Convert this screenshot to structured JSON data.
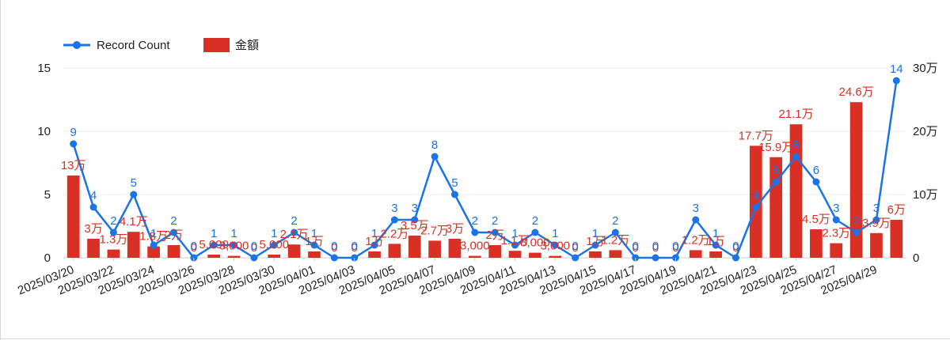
{
  "chart_data": {
    "type": "bar+line",
    "title": "",
    "xlabel": "",
    "colors": {
      "line": "#1a73e8",
      "bar": "#d93025"
    },
    "legend": {
      "position": "top-left",
      "entries": [
        {
          "name": "Record Count",
          "type": "line",
          "color": "#1a73e8"
        },
        {
          "name": "金額",
          "type": "bar",
          "color": "#d93025"
        }
      ]
    },
    "x": [
      "2025/03/20",
      "2025/03/21",
      "2025/03/22",
      "2025/03/23",
      "2025/03/24",
      "2025/03/25",
      "2025/03/26",
      "2025/03/27",
      "2025/03/28",
      "2025/03/29",
      "2025/03/30",
      "2025/03/31",
      "2025/04/01",
      "2025/04/02",
      "2025/04/03",
      "2025/04/04",
      "2025/04/05",
      "2025/04/06",
      "2025/04/07",
      "2025/04/08",
      "2025/04/09",
      "2025/04/10",
      "2025/04/11",
      "2025/04/12",
      "2025/04/13",
      "2025/04/14",
      "2025/04/15",
      "2025/04/16",
      "2025/04/17",
      "2025/04/18",
      "2025/04/19",
      "2025/04/20",
      "2025/04/21",
      "2025/04/22",
      "2025/04/23",
      "2025/04/24",
      "2025/04/25",
      "2025/04/26",
      "2025/04/27",
      "2025/04/28",
      "2025/04/29",
      "2025/04/30"
    ],
    "x_tick_labels": [
      "2025/03/20",
      "2025/03/22",
      "2025/03/24",
      "2025/03/26",
      "2025/03/28",
      "2025/03/30",
      "2025/04/01",
      "2025/04/03",
      "2025/04/05",
      "2025/04/07",
      "2025/04/09",
      "2025/04/11",
      "2025/04/13",
      "2025/04/15",
      "2025/04/17",
      "2025/04/19",
      "2025/04/21",
      "2025/04/23",
      "2025/04/25",
      "2025/04/27",
      "2025/04/29"
    ],
    "y_left": {
      "ticks": [
        0,
        5,
        10,
        15
      ],
      "tick_labels": [
        "0",
        "5",
        "10",
        "15"
      ],
      "range": [
        0,
        15
      ]
    },
    "y_right": {
      "ticks": [
        0,
        100000,
        200000,
        300000
      ],
      "tick_labels": [
        "0",
        "10万",
        "20万",
        "30万"
      ],
      "range": [
        0,
        300000
      ]
    },
    "series": [
      {
        "name": "Record Count",
        "type": "line",
        "axis": "left",
        "values": [
          9,
          4,
          2,
          5,
          1,
          2,
          0,
          1,
          1,
          0,
          1,
          2,
          1,
          0,
          0,
          1,
          3,
          3,
          8,
          5,
          2,
          2,
          1,
          2,
          1,
          0,
          1,
          2,
          0,
          0,
          0,
          3,
          1,
          0,
          4,
          6,
          8,
          6,
          3,
          2,
          3,
          14
        ],
        "labels": [
          "9",
          "4",
          "2",
          "5",
          "1",
          "2",
          "0",
          "1",
          "1",
          "0",
          "1",
          "2",
          "1",
          "0",
          "0",
          "1",
          "3",
          "3",
          "8",
          "5",
          "2",
          "2",
          "1",
          "2",
          "1",
          "0",
          "1",
          "2",
          "0",
          "0",
          "0",
          "3",
          "1",
          "0",
          "4",
          "6",
          "8",
          "6",
          "3",
          "2",
          "3",
          "14"
        ]
      },
      {
        "name": "金額",
        "type": "bar",
        "axis": "right",
        "values": [
          130000,
          30000,
          13000,
          41000,
          18000,
          20000,
          0,
          5000,
          3000,
          0,
          5000,
          21000,
          10000,
          0,
          0,
          10000,
          22000,
          35000,
          27000,
          30000,
          3000,
          20000,
          11000,
          8000,
          3000,
          0,
          10000,
          12000,
          0,
          0,
          0,
          12000,
          10000,
          0,
          177000,
          159000,
          211000,
          45000,
          23000,
          246000,
          39000,
          60000
        ],
        "labels": [
          "13万",
          "3万",
          "1.3万",
          "4.1万",
          "1.8万",
          "2万",
          "0",
          "5,000",
          "3,000",
          "0",
          "5,000",
          "2.1万",
          "1万",
          "0",
          "0",
          "1万",
          "2.2万",
          "3.5万",
          "2.7万",
          "3万",
          "3,000",
          "2万",
          "1.1万",
          "8,000",
          "3,000",
          "0",
          "1万",
          "1.2万",
          "0",
          "0",
          "0",
          "1.2万",
          "1万",
          "0",
          "17.7万",
          "15.9万",
          "21.1万",
          "4.5万",
          "2.3万",
          "24.6万",
          "3.9万",
          "6万"
        ]
      }
    ]
  }
}
